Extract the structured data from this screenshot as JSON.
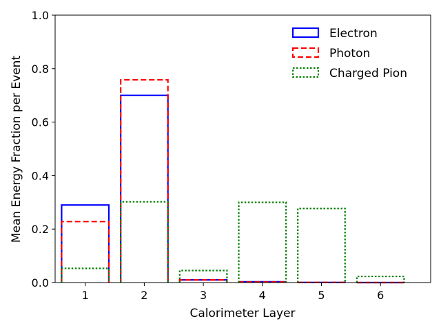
{
  "chart_data": {
    "type": "bar",
    "style": "step-outline histogram (unfilled)",
    "categories": [
      "1",
      "2",
      "3",
      "4",
      "5",
      "6"
    ],
    "x": [
      1,
      2,
      3,
      4,
      5,
      6
    ],
    "series": [
      {
        "name": "Electron",
        "values": [
          0.29,
          0.7,
          0.01,
          0.003,
          0.0005,
          0.0
        ],
        "color": "#0000ff",
        "linestyle": "solid"
      },
      {
        "name": "Photon",
        "values": [
          0.228,
          0.758,
          0.01,
          0.002,
          0.0005,
          0.0
        ],
        "color": "#ff0000",
        "linestyle": "dashed"
      },
      {
        "name": "Charged Pion",
        "values": [
          0.053,
          0.302,
          0.045,
          0.3,
          0.277,
          0.023
        ],
        "color": "#008000",
        "linestyle": "dotted"
      }
    ],
    "xlabel": "Calorimeter Layer",
    "ylabel": "Mean Energy Fraction per Event",
    "ylim": [
      0,
      1.0
    ],
    "yticks": [
      0.0,
      0.2,
      0.4,
      0.6,
      0.8,
      1.0
    ],
    "ytick_labels": [
      "0.0",
      "0.2",
      "0.4",
      "0.6",
      "0.8",
      "1.0"
    ],
    "grid": false,
    "legend_position": "top-right"
  }
}
